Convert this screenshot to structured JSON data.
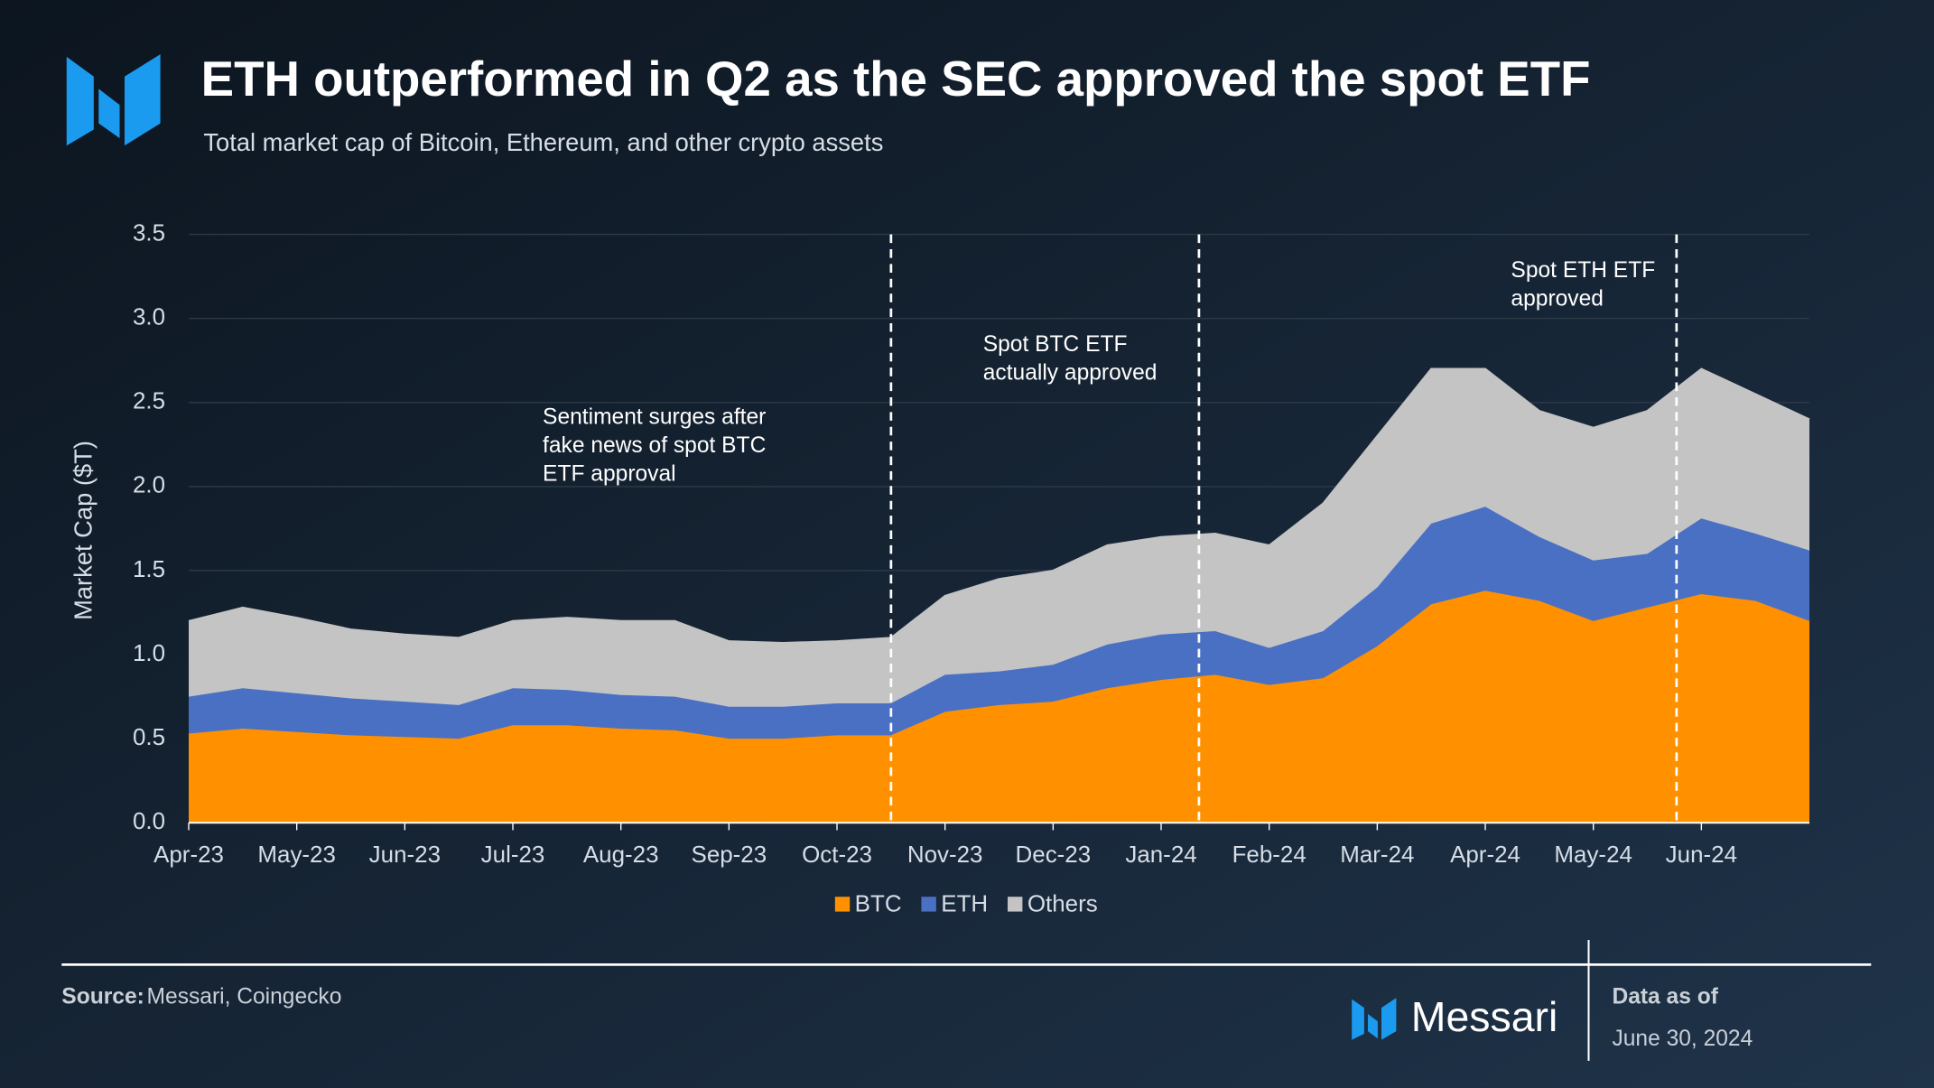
{
  "header": {
    "title": "ETH outperformed in Q2 as the SEC approved the spot ETF",
    "subtitle": "Total market cap of Bitcoin, Ethereum, and other crypto assets"
  },
  "chart_data": {
    "type": "stacked-area",
    "y_label": "Market Cap ($T)",
    "x": [
      0,
      0.5,
      1,
      1.5,
      2,
      2.5,
      3,
      3.5,
      4,
      4.5,
      5,
      5.5,
      6,
      6.5,
      7,
      7.5,
      8,
      8.5,
      9,
      9.5,
      10,
      10.5,
      11,
      11.5,
      12,
      12.5,
      13,
      13.5,
      14,
      14.5,
      15
    ],
    "xlim": [
      0,
      15
    ],
    "xticks": [
      {
        "value": 0,
        "label": "Apr-23"
      },
      {
        "value": 1,
        "label": "May-23"
      },
      {
        "value": 2,
        "label": "Jun-23"
      },
      {
        "value": 3,
        "label": "Jul-23"
      },
      {
        "value": 4,
        "label": "Aug-23"
      },
      {
        "value": 5,
        "label": "Sep-23"
      },
      {
        "value": 6,
        "label": "Oct-23"
      },
      {
        "value": 7,
        "label": "Nov-23"
      },
      {
        "value": 8,
        "label": "Dec-23"
      },
      {
        "value": 9,
        "label": "Jan-24"
      },
      {
        "value": 10,
        "label": "Feb-24"
      },
      {
        "value": 11,
        "label": "Mar-24"
      },
      {
        "value": 12,
        "label": "Apr-24"
      },
      {
        "value": 13,
        "label": "May-24"
      },
      {
        "value": 14,
        "label": "Jun-24"
      }
    ],
    "ylim": [
      0,
      3.5
    ],
    "yticks": [
      {
        "value": 0,
        "label": "0.0"
      },
      0.5,
      {
        "value": 1,
        "label": "1.0"
      },
      1.5,
      {
        "value": 2,
        "label": "2.0"
      },
      2.5,
      {
        "value": 3,
        "label": "3.0"
      },
      3.5
    ],
    "grid": true,
    "series": [
      {
        "name": "BTC",
        "color": "#ff9100",
        "values": [
          0.53,
          0.56,
          0.54,
          0.52,
          0.51,
          0.5,
          0.58,
          0.58,
          0.56,
          0.55,
          0.5,
          0.5,
          0.52,
          0.52,
          0.66,
          0.7,
          0.72,
          0.8,
          0.85,
          0.88,
          0.82,
          0.86,
          1.05,
          1.3,
          1.38,
          1.32,
          1.2,
          1.28,
          1.36,
          1.32,
          1.2
        ]
      },
      {
        "name": "ETH",
        "color": "#4a70c4",
        "values": [
          0.22,
          0.24,
          0.23,
          0.22,
          0.21,
          0.2,
          0.22,
          0.21,
          0.2,
          0.2,
          0.19,
          0.19,
          0.19,
          0.19,
          0.22,
          0.2,
          0.22,
          0.26,
          0.27,
          0.26,
          0.22,
          0.28,
          0.35,
          0.48,
          0.5,
          0.38,
          0.36,
          0.32,
          0.45,
          0.4,
          0.42
        ]
      },
      {
        "name": "Others",
        "color": "#c4c4c4",
        "values": [
          0.45,
          0.48,
          0.45,
          0.41,
          0.4,
          0.4,
          0.4,
          0.43,
          0.44,
          0.45,
          0.39,
          0.38,
          0.37,
          0.39,
          0.47,
          0.55,
          0.56,
          0.59,
          0.58,
          0.58,
          0.61,
          0.76,
          0.9,
          0.92,
          0.82,
          0.75,
          0.79,
          0.85,
          0.89,
          0.83,
          0.78
        ]
      }
    ],
    "annotations": [
      {
        "x": 6.5,
        "text": [
          "Sentiment surges after",
          "fake news of spot BTC",
          "ETF approval"
        ]
      },
      {
        "x": 9.35,
        "text": [
          "Spot BTC ETF",
          "actually approved"
        ]
      },
      {
        "x": 13.77,
        "text": [
          "Spot ETH ETF",
          "approved"
        ]
      }
    ]
  },
  "footer": {
    "source_label": "Source:",
    "source": "Messari, Coingecko",
    "brand": "Messari",
    "data_as_of_label": "Data as of",
    "data_as_of": "June 30, 2024"
  }
}
